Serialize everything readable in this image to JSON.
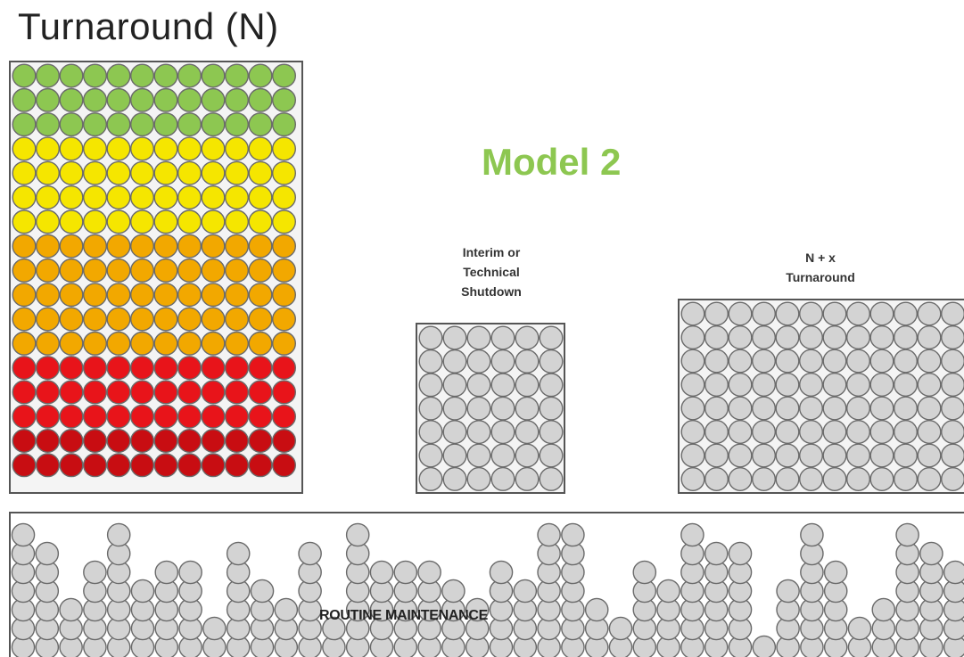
{
  "title": "Turnaround (N)",
  "model_label": "Model 2",
  "interim": {
    "line1": "Interim or",
    "line2": "Technical",
    "line3": "Shutdown"
  },
  "nx": {
    "line1": "N + x",
    "line2": "Turnaround"
  },
  "routine_label": "ROUTINE MAINTENANCE",
  "colors": {
    "green": "#8dc751",
    "yellow": "#f5e600",
    "orange": "#f2a800",
    "red": "#e8141a",
    "dark_red": "#c80d12",
    "grey": "#d3d3d3",
    "title_green": "#8dc751"
  },
  "turnaround_row_colors": [
    "green",
    "green",
    "green",
    "yellow",
    "yellow",
    "yellow",
    "yellow",
    "orange",
    "orange",
    "orange",
    "orange",
    "orange",
    "red",
    "red",
    "red",
    "dark_red",
    "dark_red"
  ],
  "routine_column_heights": [
    7,
    6,
    3,
    5,
    7,
    4,
    5,
    5,
    2,
    6,
    4,
    3,
    6,
    2,
    7,
    5,
    5,
    5,
    4,
    3,
    5,
    4,
    7,
    7,
    3,
    2,
    5,
    4,
    7,
    6,
    6,
    1,
    4,
    7,
    5,
    2,
    3,
    7,
    6,
    5
  ]
}
